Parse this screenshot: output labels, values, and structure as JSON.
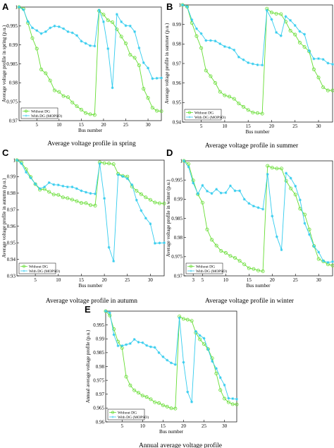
{
  "colors": {
    "without_dg": "#66dd33",
    "with_dg": "#33ccee"
  },
  "chart_data": [
    {
      "type": "line",
      "panel_label": "A",
      "caption": "Average voltage profile in spring",
      "xlabel": "Bus number",
      "ylabel": "Average voltage profile in spring (p.u.)",
      "xlim": [
        1,
        33
      ],
      "ylim": [
        0.97,
        1.0
      ],
      "xticks": [
        5,
        10,
        15,
        20,
        25,
        30
      ],
      "xticklabels": [
        "5",
        "10",
        "15",
        "20",
        "25",
        "30"
      ],
      "yticks": [
        0.97,
        0.975,
        0.98,
        0.985,
        0.99,
        0.995,
        1.0
      ],
      "yticklabels": [
        "0.97",
        "0.975",
        "0.98",
        "0.985",
        "0.99",
        "0.995",
        "1"
      ],
      "legend": "bottom-left",
      "x": [
        1,
        2,
        3,
        4,
        5,
        6,
        7,
        8,
        9,
        10,
        11,
        12,
        13,
        14,
        15,
        16,
        17,
        18,
        19,
        20,
        21,
        22,
        23,
        24,
        25,
        26,
        27,
        28,
        29,
        30,
        31,
        32,
        33
      ],
      "series": [
        {
          "name": "Without DG",
          "marker": "o",
          "values": [
            1.0,
            0.9995,
            0.9958,
            0.9918,
            0.989,
            0.9835,
            0.9825,
            0.9806,
            0.978,
            0.9776,
            0.9765,
            0.9762,
            0.9748,
            0.9738,
            0.9729,
            0.972,
            0.9717,
            0.9715,
            0.999,
            0.998,
            0.9965,
            0.996,
            0.9941,
            0.9922,
            0.9904,
            0.9874,
            0.9866,
            0.9846,
            0.9784,
            0.976,
            0.9734,
            0.9726,
            0.9725
          ]
        },
        {
          "name": "With DG (MOPSO)",
          "marker": "*",
          "values": [
            1.0,
            0.9993,
            0.9962,
            0.9945,
            0.9938,
            0.993,
            0.9935,
            0.9945,
            0.995,
            0.9948,
            0.9943,
            0.9935,
            0.9932,
            0.9925,
            0.991,
            0.9904,
            0.9898,
            0.9897,
            0.9992,
            0.9961,
            0.989,
            0.9787,
            0.9981,
            0.9961,
            0.9951,
            0.995,
            0.9935,
            0.9892,
            0.9853,
            0.9839,
            0.9811,
            0.9812,
            0.9813
          ]
        }
      ]
    },
    {
      "type": "line",
      "panel_label": "B",
      "caption": "Average voltage profile in summer",
      "xlabel": "Bus number",
      "ylabel": "Average voltage profile in summer (p.u.)",
      "xlim": [
        1,
        33
      ],
      "ylim": [
        0.94,
        1.0
      ],
      "xticks": [
        5,
        10,
        15,
        20,
        25,
        30
      ],
      "xticklabels": [
        "5",
        "10",
        "15",
        "20",
        "25",
        "30"
      ],
      "yticks": [
        0.94,
        0.95,
        0.96,
        0.97,
        0.98,
        0.99,
        1.0
      ],
      "yticklabels": [
        "0.94",
        "0.95",
        "0.96",
        "0.97",
        "0.98",
        "0.99",
        "1"
      ],
      "legend": "bottom-left",
      "x": [
        1,
        2,
        3,
        4,
        5,
        6,
        7,
        8,
        9,
        10,
        11,
        12,
        13,
        14,
        15,
        16,
        17,
        18,
        19,
        20,
        21,
        22,
        23,
        24,
        25,
        26,
        27,
        28,
        29,
        30,
        31,
        32,
        33
      ],
      "series": [
        {
          "name": "Without DG",
          "marker": "o",
          "values": [
            1.0,
            0.999,
            0.9908,
            0.984,
            0.9779,
            0.9664,
            0.9635,
            0.96,
            0.9555,
            0.9537,
            0.953,
            0.9519,
            0.9495,
            0.9478,
            0.9462,
            0.9449,
            0.9446,
            0.9443,
            0.9981,
            0.9961,
            0.9955,
            0.9953,
            0.9914,
            0.9868,
            0.9848,
            0.9807,
            0.9785,
            0.9762,
            0.967,
            0.9628,
            0.9578,
            0.9562,
            0.9562
          ]
        },
        {
          "name": "With DG (MOPSO)",
          "marker": "*",
          "values": [
            1.0,
            0.9991,
            0.9924,
            0.9878,
            0.9853,
            0.9818,
            0.9818,
            0.9815,
            0.9801,
            0.9787,
            0.9781,
            0.9769,
            0.9733,
            0.9719,
            0.9704,
            0.9698,
            0.9693,
            0.9692,
            0.9972,
            0.9926,
            0.9859,
            0.9842,
            0.9941,
            0.9921,
            0.9895,
            0.9864,
            0.985,
            0.9765,
            0.9724,
            0.9725,
            0.9721,
            0.9702,
            0.9696
          ]
        }
      ]
    },
    {
      "type": "line",
      "panel_label": "C",
      "caption": "Average voltage profile in autumn",
      "xlabel": "Bus number",
      "ylabel": "Average voltage profile in autumn (p.u.)",
      "xlim": [
        1,
        33
      ],
      "ylim": [
        0.93,
        1.0
      ],
      "xticks": [
        5,
        10,
        15,
        20,
        25,
        30
      ],
      "xticklabels": [
        "5",
        "10",
        "15",
        "20",
        "25",
        "30"
      ],
      "yticks": [
        0.93,
        0.94,
        0.95,
        0.96,
        0.97,
        0.98,
        0.99,
        1.0
      ],
      "yticklabels": [
        "0.93",
        "0.94",
        "0.95",
        "0.96",
        "0.97",
        "0.98",
        "0.99",
        "1"
      ],
      "legend": "bottom-left",
      "x": [
        1,
        2,
        3,
        4,
        5,
        6,
        7,
        8,
        9,
        10,
        11,
        12,
        13,
        14,
        15,
        16,
        17,
        18,
        19,
        20,
        21,
        22,
        23,
        24,
        25,
        26,
        27,
        28,
        29,
        30,
        31,
        32,
        33
      ],
      "series": [
        {
          "name": "Without DG",
          "marker": "o",
          "values": [
            1.0,
            0.9985,
            0.9945,
            0.9898,
            0.9855,
            0.9821,
            0.9825,
            0.9808,
            0.9792,
            0.979,
            0.9775,
            0.977,
            0.9761,
            0.9752,
            0.9741,
            0.974,
            0.9728,
            0.9725,
            0.9987,
            0.9982,
            0.998,
            0.9976,
            0.9917,
            0.9905,
            0.9901,
            0.9841,
            0.9815,
            0.9794,
            0.9775,
            0.976,
            0.9744,
            0.9739,
            0.9738
          ]
        },
        {
          "name": "With DG (MOPSO)",
          "marker": "*",
          "values": [
            1.0,
            0.9979,
            0.9927,
            0.9893,
            0.9856,
            0.9828,
            0.9838,
            0.9864,
            0.9852,
            0.985,
            0.9843,
            0.9838,
            0.9838,
            0.9828,
            0.9815,
            0.9806,
            0.9799,
            0.9796,
            0.9978,
            0.9769,
            0.9472,
            0.9389,
            0.9912,
            0.9902,
            0.9888,
            0.9851,
            0.9758,
            0.9695,
            0.9649,
            0.9615,
            0.9497,
            0.9499,
            0.95
          ]
        }
      ]
    },
    {
      "type": "line",
      "panel_label": "D",
      "caption": "Average voltage profile in winter",
      "xlabel": "Bus number",
      "ylabel": "Average voltage profile in winter (p.u.)",
      "xlim": [
        1,
        33
      ],
      "ylim": [
        0.97,
        1.0
      ],
      "xticks": [
        3,
        5,
        10,
        15,
        20,
        25,
        30
      ],
      "xticklabels": [
        "3",
        "5",
        "10",
        "15",
        "20",
        "25",
        "30"
      ],
      "yticks": [
        0.97,
        0.975,
        0.98,
        0.985,
        0.99,
        0.995,
        1.0
      ],
      "yticklabels": [
        "0.97",
        "0.975",
        "0.98",
        "0.985",
        "0.99",
        "0.995",
        "1"
      ],
      "legend": "bottom-left",
      "x": [
        1,
        2,
        3,
        4,
        5,
        6,
        7,
        8,
        9,
        10,
        11,
        12,
        13,
        14,
        15,
        16,
        17,
        18,
        19,
        20,
        21,
        22,
        23,
        24,
        25,
        26,
        27,
        28,
        29,
        30,
        31,
        32,
        33
      ],
      "series": [
        {
          "name": "Without DG",
          "marker": "o",
          "values": [
            1.0,
            0.9992,
            0.9949,
            0.9913,
            0.9891,
            0.9821,
            0.9794,
            0.9779,
            0.9765,
            0.976,
            0.9752,
            0.9747,
            0.9739,
            0.973,
            0.972,
            0.9718,
            0.9714,
            0.9712,
            0.9987,
            0.9982,
            0.998,
            0.998,
            0.9948,
            0.9928,
            0.9912,
            0.9875,
            0.986,
            0.9821,
            0.9778,
            0.9744,
            0.9738,
            0.973,
            0.9727
          ]
        },
        {
          "name": "With DG (MOPSO)",
          "marker": "*",
          "values": [
            1.0,
            0.9984,
            0.9942,
            0.9914,
            0.9936,
            0.9921,
            0.9915,
            0.9926,
            0.9916,
            0.9917,
            0.9935,
            0.9922,
            0.9922,
            0.99,
            0.9889,
            0.9882,
            0.9878,
            0.9874,
            0.9965,
            0.9856,
            0.9802,
            0.9768,
            0.9968,
            0.9955,
            0.9934,
            0.9898,
            0.9837,
            0.9808,
            0.9777,
            0.9762,
            0.9739,
            0.9735,
            0.9737
          ]
        }
      ]
    },
    {
      "type": "line",
      "panel_label": "E",
      "caption": "Annual average voltage profile",
      "xlabel": "Bus number",
      "ylabel": "Annual average voltage profile (p.u.)",
      "xlim": [
        1,
        33
      ],
      "ylim": [
        0.96,
        1.0
      ],
      "xticks": [
        5,
        10,
        15,
        20,
        25,
        30
      ],
      "xticklabels": [
        "5",
        "10",
        "15",
        "20",
        "25",
        "30"
      ],
      "yticks": [
        0.96,
        0.965,
        0.97,
        0.975,
        0.98,
        0.985,
        0.99,
        0.995
      ],
      "yticklabels": [
        "0.96",
        "0.965",
        "0.97",
        "0.975",
        "0.98",
        "0.985",
        "0.99",
        "0.995"
      ],
      "legend": "bottom-left",
      "x": [
        1,
        2,
        3,
        4,
        5,
        6,
        7,
        8,
        9,
        10,
        11,
        12,
        13,
        14,
        15,
        16,
        17,
        18,
        19,
        20,
        21,
        22,
        23,
        24,
        25,
        26,
        27,
        28,
        29,
        30,
        31,
        32,
        33
      ],
      "series": [
        {
          "name": "Without DG",
          "marker": "o",
          "values": [
            1.0,
            0.9984,
            0.9935,
            0.989,
            0.9867,
            0.9763,
            0.9732,
            0.9714,
            0.9705,
            0.9695,
            0.969,
            0.9682,
            0.9671,
            0.9668,
            0.966,
            0.9655,
            0.9649,
            0.9648,
            0.9981,
            0.9972,
            0.9969,
            0.9965,
            0.9922,
            0.9898,
            0.9881,
            0.9863,
            0.983,
            0.9775,
            0.9715,
            0.9684,
            0.9671,
            0.9664,
            0.9663
          ]
        },
        {
          "name": "With DG (MOPSO)",
          "marker": "*",
          "values": [
            1.0,
            0.9994,
            0.9915,
            0.9875,
            0.9875,
            0.9879,
            0.9883,
            0.9898,
            0.9888,
            0.9886,
            0.9876,
            0.9871,
            0.9869,
            0.985,
            0.9835,
            0.9823,
            0.9813,
            0.9807,
            0.9975,
            0.9815,
            0.9708,
            0.9672,
            0.9927,
            0.9912,
            0.9902,
            0.9862,
            0.9819,
            0.9793,
            0.976,
            0.9733,
            0.9685,
            0.9684,
            0.9682
          ]
        }
      ]
    }
  ]
}
